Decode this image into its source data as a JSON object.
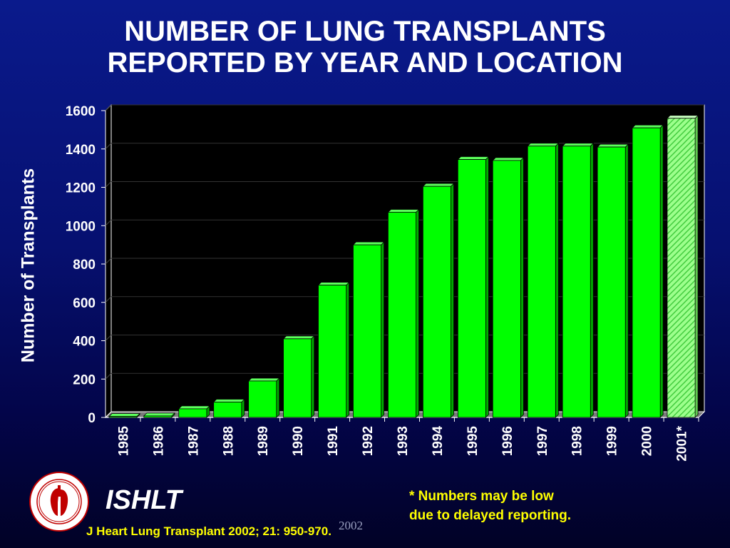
{
  "header": {
    "title_line1": "NUMBER OF LUNG TRANSPLANTS",
    "title_line2": "REPORTED BY YEAR AND LOCATION"
  },
  "chart_data": {
    "type": "bar",
    "title": "NUMBER OF LUNG TRANSPLANTS REPORTED BY YEAR AND LOCATION",
    "xlabel": "",
    "ylabel": "Number of Transplants",
    "ylim": [
      0,
      1600
    ],
    "yticks": [
      0,
      200,
      400,
      600,
      800,
      1000,
      1200,
      1400,
      1600
    ],
    "categories": [
      "1985",
      "1986",
      "1987",
      "1988",
      "1989",
      "1990",
      "1991",
      "1992",
      "1993",
      "1994",
      "1995",
      "1996",
      "1997",
      "1998",
      "1999",
      "2000",
      "2001*"
    ],
    "values": [
      5,
      8,
      45,
      80,
      190,
      410,
      690,
      900,
      1070,
      1205,
      1345,
      1340,
      1415,
      1415,
      1410,
      1510,
      1560
    ],
    "grid": true,
    "colors": {
      "bar": "#00ff00",
      "bar_hatched": "#9cff8c",
      "plot_bg": "#000000"
    }
  },
  "footer": {
    "org": "ISHLT",
    "citation": "J Heart Lung Transplant 2002; 21: 950-970.",
    "watermark": "2002",
    "note_line1": "* Numbers may be low",
    "note_line2": "due to delayed reporting."
  }
}
